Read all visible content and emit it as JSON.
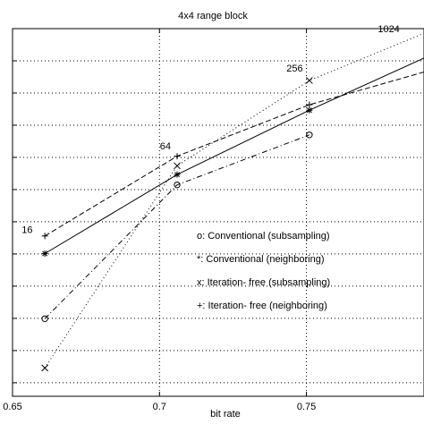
{
  "chart_data": {
    "type": "line",
    "title": "4x4 range block",
    "xlabel": "bit rate",
    "ylabel": "",
    "xlim": [
      0.65,
      0.79
    ],
    "ylim": [
      0.0,
      1.0
    ],
    "xticks": [
      0.65,
      0.7,
      0.75
    ],
    "xtick_labels": [
      "0.65",
      "0.7",
      "0.75"
    ],
    "grid": true,
    "legend_position": "lower-right",
    "series": [
      {
        "name": "o: Conventional (subsampling)",
        "marker": "o",
        "line": "dashdot",
        "x": [
          0.661,
          0.706,
          0.751
        ],
        "y": [
          0.211,
          0.575,
          0.711
        ]
      },
      {
        "name": "*: Conventional (neighboring)",
        "marker": "*",
        "line": "solid",
        "x": [
          0.661,
          0.706,
          0.751,
          0.79
        ],
        "y": [
          0.388,
          0.603,
          0.778,
          0.92
        ]
      },
      {
        "name": "x: Iteration- free (subsampling)",
        "marker": "x",
        "line": "dotted",
        "x": [
          0.661,
          0.706,
          0.751,
          0.79
        ],
        "y": [
          0.077,
          0.627,
          0.859,
          0.987
        ]
      },
      {
        "name": "+: Iteration- free (neighboring)",
        "marker": "+",
        "line": "dashed",
        "x": [
          0.661,
          0.706,
          0.751,
          0.79
        ],
        "y": [
          0.436,
          0.653,
          0.793,
          0.882
        ]
      }
    ],
    "annotations": [
      {
        "text": "16",
        "x": 0.655,
        "y": 0.454
      },
      {
        "text": "64",
        "x": 0.702,
        "y": 0.681
      },
      {
        "text": "256",
        "x": 0.746,
        "y": 0.893
      },
      {
        "text": "1024",
        "x": 0.778,
        "y": 1.0
      }
    ]
  }
}
